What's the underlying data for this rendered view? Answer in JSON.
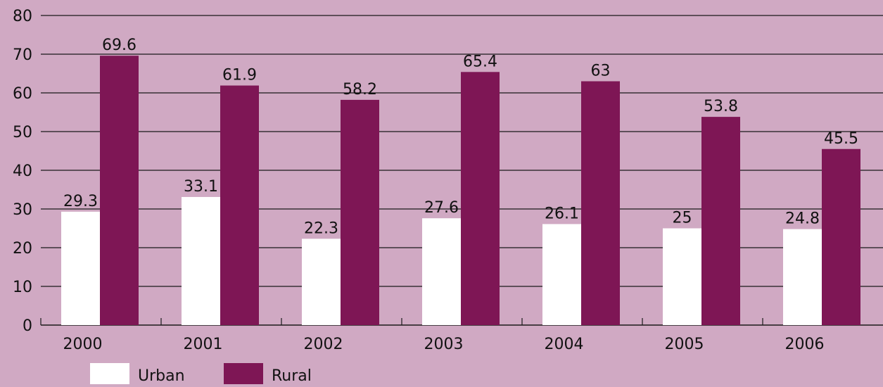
{
  "colors": {
    "background": "#D0A9C3",
    "urban": "#FFFFFF",
    "rural": "#7E1655",
    "grid": "#1A1A1A",
    "text": "#111111"
  },
  "legend": {
    "position": "bottom-left",
    "items": [
      {
        "label": "Urban",
        "color": "#FFFFFF"
      },
      {
        "label": "Rural",
        "color": "#7E1655"
      }
    ]
  },
  "chart_data": {
    "type": "bar",
    "title": "",
    "xlabel": "",
    "ylabel": "",
    "categories": [
      "2000",
      "2001",
      "2002",
      "2003",
      "2004",
      "2005",
      "2006"
    ],
    "series": [
      {
        "name": "Urban",
        "color": "#FFFFFF",
        "values": [
          29.3,
          33.1,
          22.3,
          27.6,
          26.1,
          25,
          24.8
        ]
      },
      {
        "name": "Rural",
        "color": "#7E1655",
        "values": [
          69.6,
          61.9,
          58.2,
          65.4,
          63,
          53.8,
          45.5
        ]
      }
    ],
    "ylim": [
      0,
      80
    ],
    "yticks": [
      0,
      10,
      20,
      30,
      40,
      50,
      60,
      70,
      80
    ],
    "grid": true,
    "data_labels": true
  }
}
